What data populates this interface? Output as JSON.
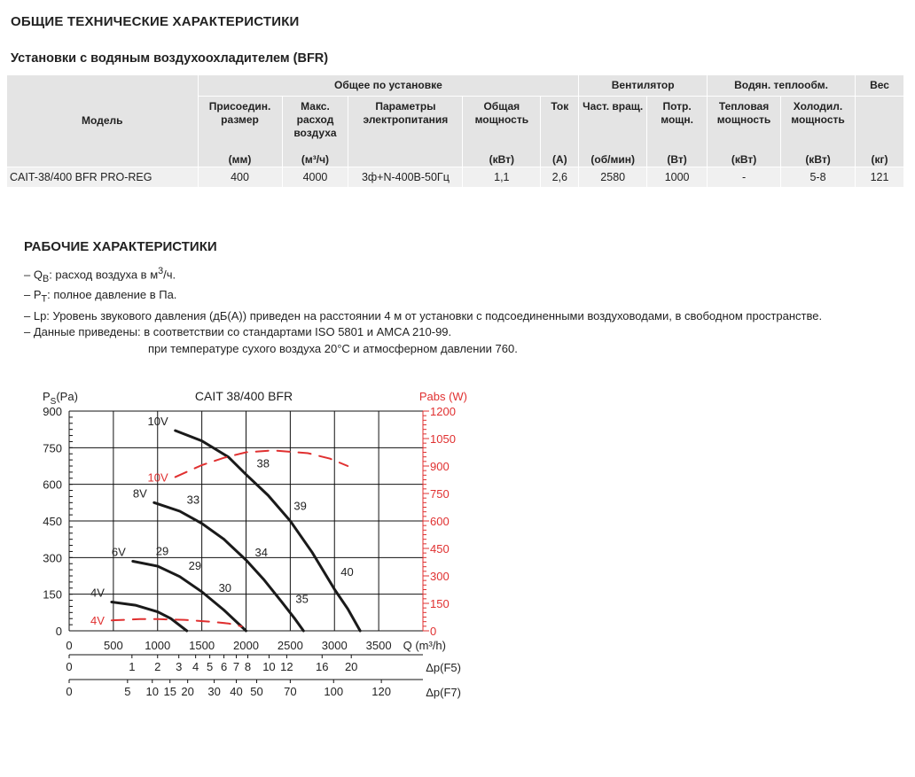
{
  "title": "ОБЩИЕ ТЕХНИЧЕСКИЕ ХАРАКТЕРИСТИКИ",
  "subtitle": "Установки с водяным воздухоохладителем (BFR)",
  "table": {
    "model_header": "Модель",
    "groups": [
      "Общее по установке",
      "Вентилятор",
      "Водян. теплообм.",
      "Вес"
    ],
    "columns": [
      {
        "name": "Присоедин. размер",
        "unit": "(мм)"
      },
      {
        "name": "Макс. расход воздуха",
        "unit": "(м³/ч)"
      },
      {
        "name": "Параметры электропитания",
        "unit": ""
      },
      {
        "name": "Общая мощность",
        "unit": "(кВт)"
      },
      {
        "name": "Ток",
        "unit": "(А)"
      },
      {
        "name": "Част. вращ.",
        "unit": "(об/мин)"
      },
      {
        "name": "Потр. мощн.",
        "unit": "(Вт)"
      },
      {
        "name": "Тепловая мощность",
        "unit": "(кВт)"
      },
      {
        "name": "Холодил. мощность",
        "unit": "(кВт)"
      },
      {
        "name": "",
        "unit": "(кг)"
      }
    ],
    "rows": [
      [
        "CAIT-38/400 BFR PRO-REG",
        "400",
        "4000",
        "3ф+N-400В-50Гц",
        "1,1",
        "2,6",
        "2580",
        "1000",
        "-",
        "5-8",
        "121"
      ]
    ]
  },
  "section2_title": "РАБОЧИЕ ХАРАКТЕРИСТИКИ",
  "notes": [
    "– Q<sub>В</sub>: расход воздуха в м<sup>3</sup>/ч.",
    "– P<sub>T</sub>: полное давление в Па.",
    "– Lp: Уровень звукового давления (дБ(А)) приведен на расстоянии 4 м от установки с подсоединенными воздуховодами, в свободном пространстве.",
    "– Данные приведены:  в соответствии со стандартами ISO 5801 и AMCA 210-99.",
    "при температуре сухого воздуха 20°C и атмосферном давлении 760."
  ],
  "chart_data": {
    "type": "line",
    "title": "CAIT 38/400 BFR",
    "ylabel": "Ps(Pa)",
    "y2label": "Pabs (W)",
    "xlabel": "Q (m³/h)",
    "xlim": [
      0,
      4000
    ],
    "ylim": [
      0,
      900
    ],
    "y2lim": [
      0,
      1200
    ],
    "xticks": [
      0,
      500,
      1000,
      1500,
      2000,
      2500,
      3000,
      3500
    ],
    "yticks": [
      0,
      150,
      300,
      450,
      600,
      750,
      900
    ],
    "y2ticks": [
      0,
      150,
      300,
      450,
      600,
      750,
      900,
      1050,
      1200
    ],
    "grid": true,
    "colors": {
      "pressure": "#1a1a1a",
      "power": "#e03030"
    },
    "series": [
      {
        "name": "10V",
        "axis": "left",
        "points": [
          [
            1200,
            820
          ],
          [
            1500,
            778
          ],
          [
            1800,
            712
          ],
          [
            2000,
            640
          ],
          [
            2250,
            555
          ],
          [
            2500,
            450
          ],
          [
            2750,
            320
          ],
          [
            3000,
            170
          ],
          [
            3150,
            90
          ],
          [
            3290,
            0
          ]
        ]
      },
      {
        "name": "8V",
        "axis": "left",
        "points": [
          [
            960,
            525
          ],
          [
            1250,
            490
          ],
          [
            1500,
            440
          ],
          [
            1750,
            375
          ],
          [
            2000,
            290
          ],
          [
            2200,
            210
          ],
          [
            2400,
            120
          ],
          [
            2550,
            50
          ],
          [
            2650,
            0
          ]
        ]
      },
      {
        "name": "6V",
        "axis": "left",
        "points": [
          [
            720,
            285
          ],
          [
            1000,
            265
          ],
          [
            1250,
            222
          ],
          [
            1500,
            160
          ],
          [
            1750,
            85
          ],
          [
            2000,
            0
          ]
        ]
      },
      {
        "name": "4V",
        "axis": "left",
        "points": [
          [
            480,
            118
          ],
          [
            750,
            105
          ],
          [
            1000,
            78
          ],
          [
            1150,
            50
          ],
          [
            1330,
            0
          ]
        ]
      },
      {
        "name": "10V",
        "axis": "right",
        "points": [
          [
            1200,
            840
          ],
          [
            1500,
            905
          ],
          [
            1750,
            945
          ],
          [
            2000,
            975
          ],
          [
            2300,
            985
          ],
          [
            2700,
            970
          ],
          [
            2950,
            940
          ],
          [
            3150,
            900
          ]
        ]
      },
      {
        "name": "4V",
        "axis": "right",
        "points": [
          [
            480,
            57
          ],
          [
            800,
            64
          ],
          [
            1000,
            64
          ],
          [
            1300,
            60
          ],
          [
            1600,
            50
          ],
          [
            1800,
            40
          ],
          [
            1950,
            24
          ]
        ]
      }
    ],
    "annotations": [
      {
        "text": "38",
        "q": 2120,
        "ps": 670
      },
      {
        "text": "39",
        "q": 2540,
        "ps": 495
      },
      {
        "text": "40",
        "q": 3070,
        "ps": 225
      },
      {
        "text": "33",
        "q": 1330,
        "ps": 520
      },
      {
        "text": "34",
        "q": 2100,
        "ps": 305
      },
      {
        "text": "35",
        "q": 2560,
        "ps": 115
      },
      {
        "text": "29",
        "q": 980,
        "ps": 310
      },
      {
        "text": "29",
        "q": 1350,
        "ps": 250
      },
      {
        "text": "30",
        "q": 1690,
        "ps": 160
      }
    ],
    "secondary_axes": [
      {
        "label": "Δp(F5)",
        "ticks": [
          [
            "0",
            0
          ],
          [
            "1",
            710
          ],
          [
            "2",
            1000
          ],
          [
            "3",
            1240
          ],
          [
            "4",
            1430
          ],
          [
            "5",
            1590
          ],
          [
            "6",
            1750
          ],
          [
            "7",
            1890
          ],
          [
            "8",
            2020
          ],
          [
            "10",
            2260
          ],
          [
            "12",
            2460
          ],
          [
            "16",
            2860
          ],
          [
            "20",
            3190
          ]
        ]
      },
      {
        "label": "Δp(F7)",
        "ticks": [
          [
            "0",
            0
          ],
          [
            "5",
            660
          ],
          [
            "10",
            940
          ],
          [
            "15",
            1140
          ],
          [
            "20",
            1340
          ],
          [
            "30",
            1640
          ],
          [
            "40",
            1890
          ],
          [
            "50",
            2120
          ],
          [
            "70",
            2500
          ],
          [
            "100",
            2990
          ],
          [
            "120",
            3530
          ]
        ]
      }
    ]
  }
}
